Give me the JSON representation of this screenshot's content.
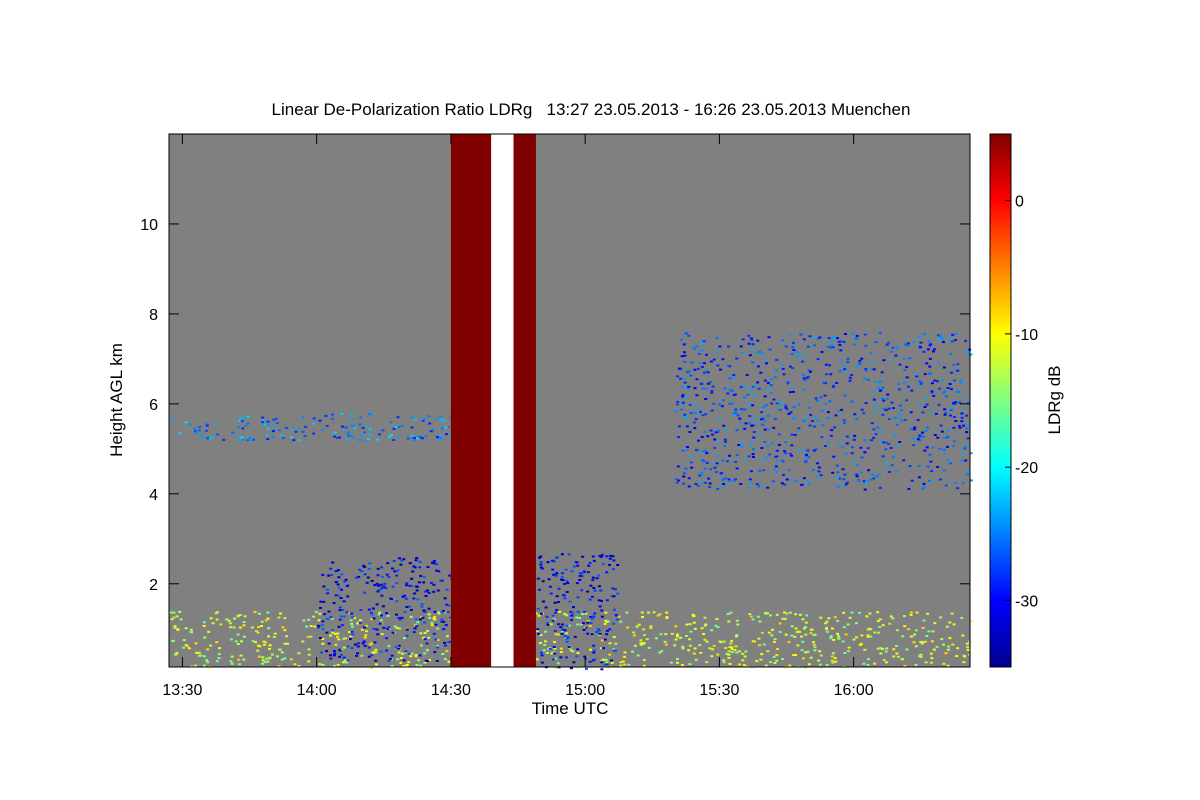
{
  "chart_data": {
    "type": "heatmap",
    "title": "Linear De-Polarization Ratio LDRg   13:27 23.05.2013 - 16:26 23.05.2013 Muenchen",
    "xlabel": "Time UTC",
    "ylabel": "Height AGL km",
    "x_ticks": [
      "13:30",
      "14:00",
      "14:30",
      "15:00",
      "15:30",
      "16:00"
    ],
    "y_ticks": [
      "2",
      "4",
      "6",
      "8",
      "10"
    ],
    "xlim": [
      "13:27",
      "16:26"
    ],
    "ylim": [
      0.15,
      12.0
    ],
    "colorbar": {
      "label": "LDRg dB",
      "ticks": [
        "0",
        "-10",
        "-20",
        "-30"
      ],
      "range": [
        -35,
        5
      ],
      "colormap": "jet"
    },
    "background_color": "#808080",
    "no_data_periods": [
      {
        "start": "14:30",
        "end": "14:39",
        "color": "#800000"
      },
      {
        "start": "14:39",
        "end": "14:44",
        "color": "#ffffff"
      },
      {
        "start": "14:44",
        "end": "14:49",
        "color": "#800000"
      }
    ],
    "features": [
      {
        "label": "boundary layer",
        "time": [
          "13:27",
          "16:26"
        ],
        "height_km": [
          0.15,
          1.4
        ],
        "ldr_db": -12
      },
      {
        "label": "cloud layer",
        "time": [
          "13:27",
          "14:30"
        ],
        "height_km": [
          5.2,
          5.8
        ],
        "ldr_db": -25
      },
      {
        "label": "precipitation fall streaks",
        "time": [
          "14:00",
          "14:30"
        ],
        "height_km": [
          0.3,
          2.6
        ],
        "ldr_db": -30
      },
      {
        "label": "precipitation fall streaks",
        "time": [
          "14:49",
          "15:07"
        ],
        "height_km": [
          0.1,
          2.7
        ],
        "ldr_db": -30
      },
      {
        "label": "cloud layer",
        "time": [
          "15:20",
          "16:26"
        ],
        "height_km": [
          4.1,
          7.6
        ],
        "ldr_db": -27
      }
    ]
  }
}
